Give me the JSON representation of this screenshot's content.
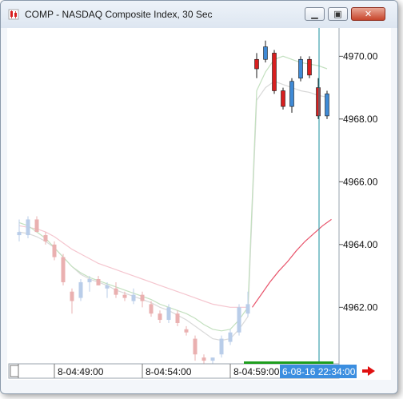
{
  "window": {
    "title": "COMP - NASDAQ Composite Index, 30 Sec",
    "minimize_icon": "minimize-icon",
    "maximize_icon": "maximize-icon",
    "close_icon": "close-icon",
    "app_icon": "candlestick-app-icon"
  },
  "colors": {
    "up": "#3f8ad6",
    "down": "#d81f1f",
    "up_faded": "#b9cde9",
    "down_faded": "#eab0b0",
    "ma_green": "#c3e0bf",
    "ma_gray": "#d9d9d9",
    "ma_pink": "#f5c6cf",
    "ma_red": "#e8546b",
    "cursor": "#1a8f9c",
    "cursor_tag": "#3b8ee0",
    "volume_bar": "#1e9e1e",
    "scroll_arrow": "#e01010"
  },
  "chart_data": {
    "type": "candlestick",
    "y_ticks": [
      "4970.00",
      "4968.00",
      "4966.00",
      "4964.00",
      "4962.00"
    ],
    "y_tick_values": [
      4970,
      4968,
      4966,
      4964,
      4962
    ],
    "ylim": [
      4960.2,
      4970.9
    ],
    "time_labels": [
      "8-04:49:00",
      "8-04:54:00",
      "8-04:59:00"
    ],
    "cursor_label": "6-08-16 22:34:00",
    "candles": [
      {
        "o": 4964.3,
        "h": 4964.8,
        "l": 4964.1,
        "c": 4964.4,
        "faded": true
      },
      {
        "o": 4964.3,
        "h": 4964.9,
        "l": 4964.2,
        "c": 4964.8,
        "faded": true
      },
      {
        "o": 4964.8,
        "h": 4964.9,
        "l": 4964.4,
        "c": 4964.4,
        "faded": true
      },
      {
        "o": 4964.3,
        "h": 4964.4,
        "l": 4964.0,
        "c": 4964.1,
        "faded": true
      },
      {
        "o": 4964.0,
        "h": 4964.1,
        "l": 4963.5,
        "c": 4963.6,
        "faded": true
      },
      {
        "o": 4963.6,
        "h": 4963.7,
        "l": 4962.7,
        "c": 4962.8,
        "faded": true
      },
      {
        "o": 4962.5,
        "h": 4962.6,
        "l": 4961.8,
        "c": 4962.2,
        "faded": true
      },
      {
        "o": 4962.3,
        "h": 4962.9,
        "l": 4962.2,
        "c": 4962.8,
        "faded": true
      },
      {
        "o": 4962.8,
        "h": 4963.0,
        "l": 4962.5,
        "c": 4962.9,
        "faded": true
      },
      {
        "o": 4962.9,
        "h": 4963.0,
        "l": 4962.7,
        "c": 4962.7,
        "faded": true
      },
      {
        "o": 4962.6,
        "h": 4962.8,
        "l": 4962.3,
        "c": 4962.7,
        "faded": true
      },
      {
        "o": 4962.6,
        "h": 4962.8,
        "l": 4962.3,
        "c": 4962.4,
        "faded": true
      },
      {
        "o": 4962.4,
        "h": 4962.5,
        "l": 4962.2,
        "c": 4962.3,
        "faded": true
      },
      {
        "o": 4962.2,
        "h": 4962.6,
        "l": 4962.1,
        "c": 4962.4,
        "faded": true
      },
      {
        "o": 4962.4,
        "h": 4962.5,
        "l": 4962.0,
        "c": 4962.2,
        "faded": true
      },
      {
        "o": 4962.1,
        "h": 4962.2,
        "l": 4961.7,
        "c": 4961.8,
        "faded": true
      },
      {
        "o": 4961.8,
        "h": 4961.9,
        "l": 4961.5,
        "c": 4961.6,
        "faded": true
      },
      {
        "o": 4961.6,
        "h": 4962.1,
        "l": 4961.5,
        "c": 4962.0,
        "faded": true
      },
      {
        "o": 4961.8,
        "h": 4961.9,
        "l": 4961.4,
        "c": 4961.5,
        "faded": true
      },
      {
        "o": 4961.3,
        "h": 4961.4,
        "l": 4961.1,
        "c": 4961.2,
        "faded": true
      },
      {
        "o": 4961.0,
        "h": 4961.1,
        "l": 4960.3,
        "c": 4960.5,
        "faded": true
      },
      {
        "o": 4960.4,
        "h": 4960.5,
        "l": 4960.1,
        "c": 4960.3,
        "faded": true
      },
      {
        "o": 4960.3,
        "h": 4960.4,
        "l": 4960.2,
        "c": 4960.4,
        "faded": true
      },
      {
        "o": 4960.5,
        "h": 4961.1,
        "l": 4960.4,
        "c": 4961.0,
        "faded": true
      },
      {
        "o": 4960.9,
        "h": 4961.3,
        "l": 4960.8,
        "c": 4961.2,
        "faded": true
      },
      {
        "o": 4961.2,
        "h": 4962.1,
        "l": 4961.1,
        "c": 4962.0,
        "faded": true
      },
      {
        "o": 4961.8,
        "h": 4962.5,
        "l": 4961.7,
        "c": 4962.1,
        "faded": true
      },
      {
        "o": 4969.9,
        "h": 4970.1,
        "l": 4969.3,
        "c": 4969.6,
        "faded": false
      },
      {
        "o": 4969.9,
        "h": 4970.5,
        "l": 4969.8,
        "c": 4970.3,
        "faded": false
      },
      {
        "o": 4970.1,
        "h": 4970.2,
        "l": 4968.8,
        "c": 4968.9,
        "faded": false
      },
      {
        "o": 4968.9,
        "h": 4969.0,
        "l": 4968.3,
        "c": 4968.4,
        "faded": false
      },
      {
        "o": 4968.4,
        "h": 4969.3,
        "l": 4968.2,
        "c": 4969.2,
        "faded": false
      },
      {
        "o": 4969.3,
        "h": 4970.0,
        "l": 4969.2,
        "c": 4969.9,
        "faded": false
      },
      {
        "o": 4969.9,
        "h": 4970.0,
        "l": 4969.3,
        "c": 4969.4,
        "faded": false
      },
      {
        "o": 4969.0,
        "h": 4969.3,
        "l": 4968.0,
        "c": 4968.1,
        "faded": false
      },
      {
        "o": 4968.1,
        "h": 4968.9,
        "l": 4968.0,
        "c": 4968.8,
        "faded": false
      }
    ],
    "ma_green": [
      4964.7,
      4964.6,
      4964.4,
      4964.2,
      4963.9,
      4963.6,
      4963.3,
      4963.1,
      4962.95,
      4962.85,
      4962.75,
      4962.65,
      4962.55,
      4962.45,
      4962.35,
      4962.25,
      4962.1,
      4962.0,
      4961.9,
      4961.8,
      4961.65,
      4961.45,
      4961.3,
      4961.25,
      4961.3,
      4961.6,
      4962.0,
      4968.9,
      4969.5,
      4969.9,
      4970.0,
      4969.9,
      4969.8,
      4969.75,
      4969.7,
      4969.6
    ],
    "ma_gray": [
      4964.4,
      4964.35,
      4964.25,
      4964.1,
      4963.9,
      4963.6,
      4963.3,
      4963.05,
      4962.9,
      4962.8,
      4962.7,
      4962.55,
      4962.45,
      4962.35,
      4962.25,
      4962.15,
      4962.0,
      4961.9,
      4961.75,
      4961.6,
      4961.4,
      4961.2,
      4961.0,
      4960.95,
      4961.0,
      4961.3,
      4961.7,
      4968.6,
      4969.0,
      4969.2,
      4969.1,
      4969.0,
      4968.9,
      4968.85,
      4968.75,
      4968.7
    ],
    "ma_pink": [
      4964.6,
      4964.55,
      4964.5,
      4964.4,
      4964.25,
      4964.05,
      4963.85,
      4963.7,
      4963.55,
      4963.4,
      4963.3,
      4963.2,
      4963.1,
      4963.0,
      4962.9,
      4962.8,
      4962.7,
      4962.6,
      4962.5,
      4962.4,
      4962.3,
      4962.2,
      4962.1,
      4962.05,
      4962.0,
      4962.0,
      4962.0
    ],
    "ma_red": [
      4962.0,
      4962.4,
      4962.8,
      4963.15,
      4963.45,
      4963.8,
      4964.1,
      4964.35,
      4964.6,
      4964.8
    ]
  }
}
